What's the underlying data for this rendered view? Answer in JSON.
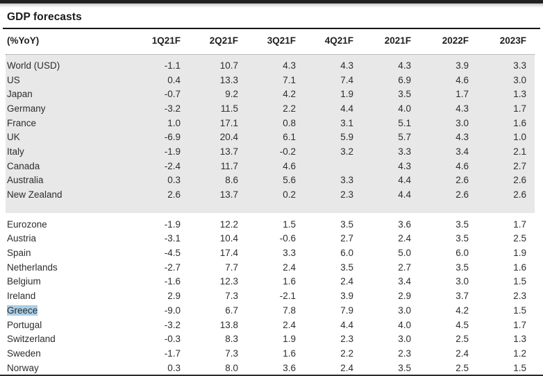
{
  "title": "GDP forecasts",
  "colors": {
    "band_background": "#e9e8e8",
    "selection_highlight": "#a9cfe6",
    "text": "#2d2d2d",
    "rule": "#141414",
    "top_bar": "#222222"
  },
  "chart_data": {
    "type": "table",
    "title": "GDP forecasts",
    "unit_label": "(%YoY)",
    "columns": [
      "1Q21F",
      "2Q21F",
      "3Q21F",
      "4Q21F",
      "2021F",
      "2022F",
      "2023F"
    ],
    "layout": {
      "grouped_blocks": 2,
      "first_block_shaded": true,
      "values_right_aligned": true
    },
    "blocks": [
      {
        "name": "major-economies",
        "rows": [
          {
            "label": "World (USD)",
            "values": [
              "-1.1",
              "10.7",
              "4.3",
              "4.3",
              "4.3",
              "3.9",
              "3.3"
            ]
          },
          {
            "label": "US",
            "values": [
              "0.4",
              "13.3",
              "7.1",
              "7.4",
              "6.9",
              "4.6",
              "3.0"
            ]
          },
          {
            "label": "Japan",
            "values": [
              "-0.7",
              "9.2",
              "4.2",
              "1.9",
              "3.5",
              "1.7",
              "1.3"
            ]
          },
          {
            "label": "Germany",
            "values": [
              "-3.2",
              "11.5",
              "2.2",
              "4.4",
              "4.0",
              "4.3",
              "1.7"
            ]
          },
          {
            "label": "France",
            "values": [
              "1.0",
              "17.1",
              "0.8",
              "3.1",
              "5.1",
              "3.0",
              "1.6"
            ]
          },
          {
            "label": "UK",
            "values": [
              "-6.9",
              "20.4",
              "6.1",
              "5.9",
              "5.7",
              "4.3",
              "1.0"
            ]
          },
          {
            "label": "Italy",
            "values": [
              "-1.9",
              "13.7",
              "-0.2",
              "3.2",
              "3.3",
              "3.4",
              "2.1"
            ]
          },
          {
            "label": "Canada",
            "values": [
              "-2.4",
              "11.7",
              "4.6",
              "",
              "4.3",
              "4.6",
              "2.7"
            ]
          },
          {
            "label": "Australia",
            "values": [
              "0.3",
              "8.6",
              "5.6",
              "3.3",
              "4.4",
              "2.6",
              "2.6"
            ]
          },
          {
            "label": "New Zealand",
            "values": [
              "2.6",
              "13.7",
              "0.2",
              "2.3",
              "4.4",
              "2.6",
              "2.6"
            ]
          }
        ]
      },
      {
        "name": "european-economies",
        "rows": [
          {
            "label": "Eurozone",
            "values": [
              "-1.9",
              "12.2",
              "1.5",
              "3.5",
              "3.6",
              "3.5",
              "1.7"
            ]
          },
          {
            "label": "Austria",
            "values": [
              "-3.1",
              "10.4",
              "-0.6",
              "2.7",
              "2.4",
              "3.5",
              "2.5"
            ]
          },
          {
            "label": "Spain",
            "values": [
              "-4.5",
              "17.4",
              "3.3",
              "6.0",
              "5.0",
              "6.0",
              "1.9"
            ]
          },
          {
            "label": "Netherlands",
            "values": [
              "-2.7",
              "7.7",
              "2.4",
              "3.5",
              "2.7",
              "3.5",
              "1.6"
            ]
          },
          {
            "label": "Belgium",
            "values": [
              "-1.6",
              "12.3",
              "1.6",
              "2.4",
              "3.4",
              "3.0",
              "1.5"
            ]
          },
          {
            "label": "Ireland",
            "values": [
              "2.9",
              "7.3",
              "-2.1",
              "3.9",
              "2.9",
              "3.7",
              "2.3"
            ]
          },
          {
            "label": "Greece",
            "highlighted": true,
            "values": [
              "-9.0",
              "6.7",
              "7.8",
              "7.9",
              "3.0",
              "4.2",
              "1.5"
            ]
          },
          {
            "label": "Portugal",
            "values": [
              "-3.2",
              "13.8",
              "2.4",
              "4.4",
              "4.0",
              "4.5",
              "1.7"
            ]
          },
          {
            "label": "Switzerland",
            "values": [
              "-0.3",
              "8.3",
              "1.9",
              "2.3",
              "3.0",
              "2.5",
              "1.3"
            ]
          },
          {
            "label": "Sweden",
            "values": [
              "-1.7",
              "7.3",
              "1.6",
              "2.2",
              "2.3",
              "2.4",
              "1.2"
            ]
          },
          {
            "label": "Norway",
            "values": [
              "0.3",
              "8.0",
              "3.6",
              "2.4",
              "3.5",
              "2.5",
              "1.5"
            ]
          }
        ]
      }
    ]
  }
}
